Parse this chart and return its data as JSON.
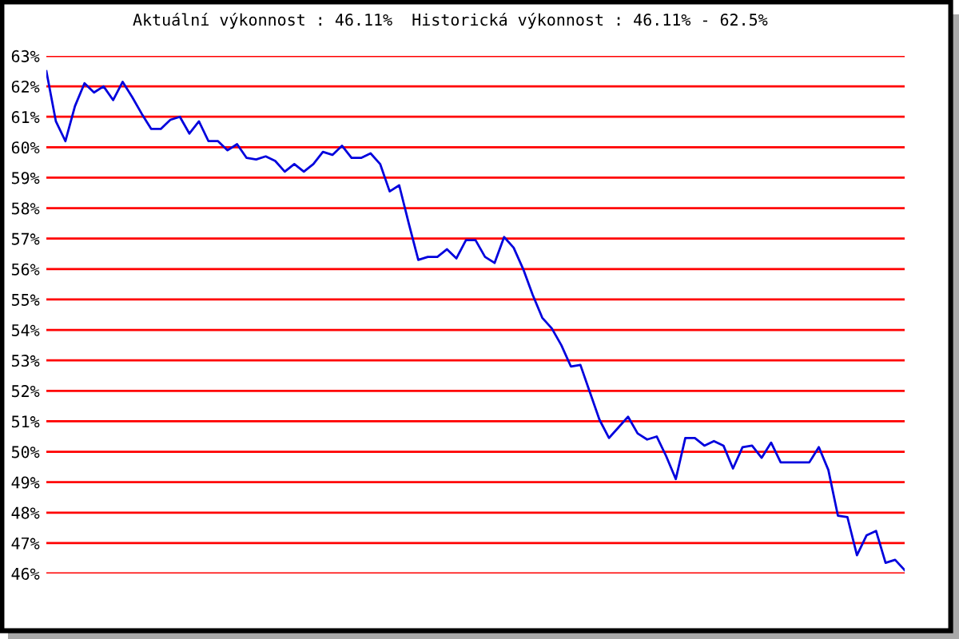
{
  "chart_data": {
    "type": "line",
    "title": "Aktuální výkonnost : 46.11%  Historická výkonnost : 46.11% - 62.5%",
    "categories": [
      null,
      null,
      null,
      null,
      null,
      null,
      null,
      null,
      null,
      null,
      null,
      null,
      null,
      null,
      null,
      null,
      null,
      null,
      null,
      null,
      null,
      null,
      null,
      null,
      null,
      null,
      null,
      null,
      null,
      null,
      null,
      null,
      null,
      null,
      null,
      null,
      null,
      null,
      null,
      null,
      null,
      null,
      null,
      null,
      null,
      null,
      null,
      null,
      null,
      null,
      null,
      null,
      null,
      null,
      null,
      null,
      null,
      null,
      null,
      null,
      null,
      null,
      null,
      null,
      null,
      null,
      null,
      null,
      null,
      null,
      null,
      null,
      null,
      null,
      null,
      null,
      null,
      null,
      null,
      null,
      null,
      null,
      null,
      null,
      null,
      null,
      null,
      null,
      null,
      null,
      null
    ],
    "series": [
      {
        "color": "#0000dd",
        "values": [
          62.5,
          60.85,
          60.2,
          61.35,
          62.1,
          61.8,
          62.0,
          61.55,
          62.15,
          61.65,
          61.1,
          60.6,
          60.6,
          60.9,
          61.0,
          60.45,
          60.85,
          60.2,
          60.2,
          59.9,
          60.1,
          59.65,
          59.6,
          59.7,
          59.55,
          59.2,
          59.45,
          59.2,
          59.45,
          59.85,
          59.75,
          60.05,
          59.65,
          59.65,
          59.8,
          59.45,
          58.55,
          58.75,
          57.5,
          56.3,
          56.4,
          56.4,
          56.65,
          56.35,
          56.95,
          56.95,
          56.4,
          56.2,
          57.05,
          56.7,
          56.0,
          55.15,
          54.4,
          54.05,
          53.5,
          52.8,
          52.85,
          51.95,
          51.05,
          50.45,
          50.8,
          51.15,
          50.6,
          50.4,
          50.5,
          49.85,
          49.1,
          50.45,
          50.45,
          50.2,
          50.35,
          50.2,
          49.45,
          50.15,
          50.2,
          49.8,
          50.3,
          49.65,
          49.65,
          49.65,
          49.65,
          50.15,
          49.4,
          47.9,
          47.85,
          46.6,
          47.25,
          47.4,
          46.35,
          46.45,
          46.11
        ]
      }
    ],
    "ylim": [
      46,
      63
    ],
    "yticks": [
      {
        "value": 46,
        "label": "46%"
      },
      {
        "value": 47,
        "label": "47%"
      },
      {
        "value": 48,
        "label": "48%"
      },
      {
        "value": 49,
        "label": "49%"
      },
      {
        "value": 50,
        "label": "50%"
      },
      {
        "value": 51,
        "label": "51%"
      },
      {
        "value": 52,
        "label": "52%"
      },
      {
        "value": 53,
        "label": "53%"
      },
      {
        "value": 54,
        "label": "54%"
      },
      {
        "value": 55,
        "label": "55%"
      },
      {
        "value": 56,
        "label": "56%"
      },
      {
        "value": 57,
        "label": "57%"
      },
      {
        "value": 58,
        "label": "58%"
      },
      {
        "value": 59,
        "label": "59%"
      },
      {
        "value": 60,
        "label": "60%"
      },
      {
        "value": 61,
        "label": "61%"
      },
      {
        "value": 62,
        "label": "62%"
      },
      {
        "value": 63,
        "label": "63%"
      }
    ],
    "grid": "y",
    "tick_labels": "y",
    "line_style": "solid"
  }
}
